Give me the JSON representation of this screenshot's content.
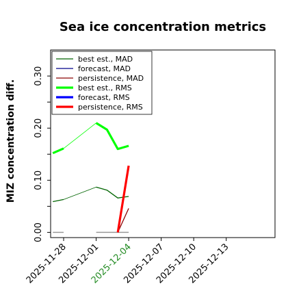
{
  "chart_data": {
    "type": "line",
    "title": "Sea ice concentration metrics",
    "ylabel": "MIZ concentration diff.",
    "xlabel": "",
    "ylim": [
      -0.01,
      0.35
    ],
    "yticks": [
      0.0,
      0.1,
      0.2,
      0.3
    ],
    "ytick_labels": [
      "0.00",
      "0.10",
      "0.20",
      "0.30"
    ],
    "xlim": [
      -1.2,
      19.5
    ],
    "xticks": [
      0,
      3,
      6,
      9,
      12,
      15
    ],
    "xtick_labels": [
      "2025-11-28",
      "2025-12-01",
      "2025-12-04",
      "2025-12-07",
      "2025-12-10",
      "2025-12-13"
    ],
    "highlight_xtick_index": 2,
    "highlight_color": "#228B22",
    "grid": false,
    "legend_position": "upper-left",
    "series": [
      {
        "name": "best est., MAD",
        "color": "#006400",
        "width": 1.3,
        "segments": [
          {
            "x": [
              -1,
              0
            ],
            "y": [
              0.059,
              0.063
            ]
          },
          {
            "x": [
              3,
              4,
              5,
              6
            ],
            "y": [
              0.087,
              0.081,
              0.066,
              0.069
            ]
          }
        ],
        "thin_connectors": [
          {
            "x": [
              0,
              3
            ],
            "y": [
              0.063,
              0.087
            ]
          }
        ]
      },
      {
        "name": "forecast,  MAD",
        "color": "#00008B",
        "width": 1.3,
        "segments": []
      },
      {
        "name": "persistence, MAD",
        "color": "#8B0000",
        "width": 1.3,
        "segments": [
          {
            "x": [
              5,
              6
            ],
            "y": [
              0.0,
              0.046
            ]
          }
        ]
      },
      {
        "name": "best est., RMS",
        "color": "#00FF00",
        "width": 3.2,
        "segments": [
          {
            "x": [
              -1,
              0
            ],
            "y": [
              0.152,
              0.161
            ]
          },
          {
            "x": [
              3,
              4,
              5,
              6
            ],
            "y": [
              0.21,
              0.197,
              0.16,
              0.166
            ]
          }
        ],
        "thin_connectors": [
          {
            "x": [
              0,
              3
            ],
            "y": [
              0.161,
              0.21
            ]
          }
        ]
      },
      {
        "name": "forecast,  RMS",
        "color": "#0000FF",
        "width": 3.2,
        "segments": []
      },
      {
        "name": "persistence, RMS",
        "color": "#FF0000",
        "width": 3.2,
        "segments": [
          {
            "x": [
              5,
              6
            ],
            "y": [
              0.0,
              0.128
            ]
          }
        ]
      }
    ],
    "zero_markers": {
      "color": "#999999",
      "segments": [
        {
          "x": [
            -1,
            0
          ],
          "y": [
            0.0,
            0.0
          ]
        },
        {
          "x": [
            3,
            6
          ],
          "y": [
            0.0,
            0.0
          ]
        }
      ]
    }
  }
}
